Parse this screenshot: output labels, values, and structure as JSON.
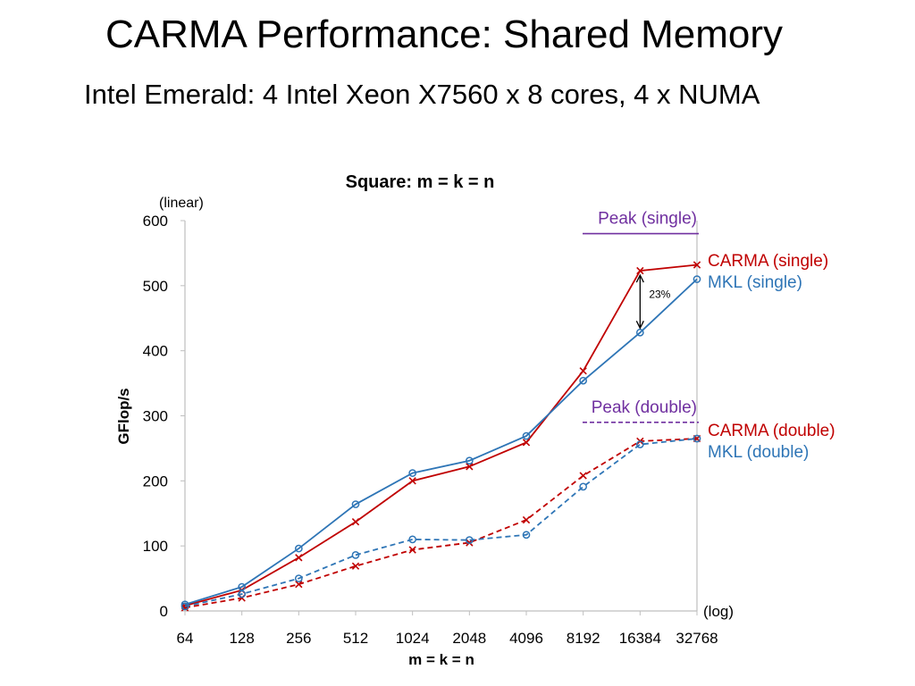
{
  "slide": {
    "title": "CARMA Performance: Shared Memory",
    "subtitle": "Intel Emerald: 4 Intel Xeon X7560 x 8 cores, 4 x NUMA"
  },
  "chart_data": {
    "type": "line",
    "title": "Square: m = k = n",
    "xlabel": "m = k = n",
    "ylabel": "GFlop/s",
    "x_scale_label": "(log)",
    "y_scale_label": "(linear)",
    "x_scale": "log2",
    "categories": [
      "64",
      "128",
      "256",
      "512",
      "1024",
      "2048",
      "4096",
      "8192",
      "16384",
      "32768"
    ],
    "x": [
      64,
      128,
      256,
      512,
      1024,
      2048,
      4096,
      8192,
      16384,
      32768
    ],
    "ylim": [
      0,
      600
    ],
    "yticks": [
      "0",
      "100",
      "200",
      "300",
      "400",
      "500",
      "600"
    ],
    "grid": false,
    "series": [
      {
        "name": "CARMA (single)",
        "color": "#c00000",
        "dashed": false,
        "marker": "x",
        "values": [
          8,
          32,
          82,
          137,
          200,
          222,
          259,
          369,
          523,
          532
        ]
      },
      {
        "name": "MKL (single)",
        "color": "#2e75b6",
        "dashed": false,
        "marker": "o",
        "values": [
          10,
          37,
          96,
          164,
          212,
          231,
          269,
          354,
          428,
          510
        ]
      },
      {
        "name": "CARMA (double)",
        "color": "#c00000",
        "dashed": true,
        "marker": "x",
        "values": [
          5,
          20,
          41,
          69,
          94,
          105,
          140,
          208,
          261,
          265
        ]
      },
      {
        "name": "MKL (double)",
        "color": "#2e75b6",
        "dashed": true,
        "marker": "o",
        "values": [
          7,
          26,
          50,
          86,
          110,
          109,
          117,
          191,
          256,
          265
        ]
      }
    ],
    "peaks": [
      {
        "name": "Peak (single)",
        "value": 580,
        "color": "#7030a0",
        "dashed": false
      },
      {
        "name": "Peak (double)",
        "value": 290,
        "color": "#7030a0",
        "dashed": true
      }
    ],
    "annotation": {
      "text": "23%",
      "x": 16384,
      "y_from": 523,
      "y_to": 428
    }
  }
}
